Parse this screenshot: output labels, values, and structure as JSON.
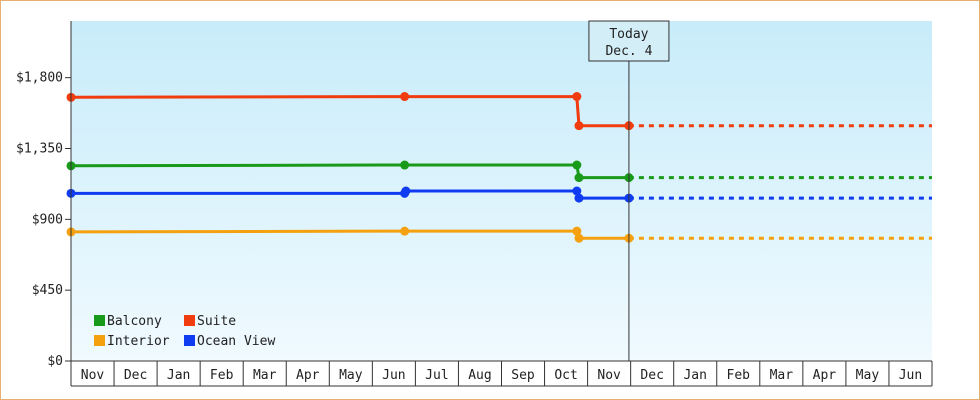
{
  "chart_data": {
    "type": "line",
    "title": "",
    "xlabel": "",
    "ylabel": "",
    "ylim": [
      0,
      2160
    ],
    "y_ticks": [
      {
        "value": 0,
        "label": "$0"
      },
      {
        "value": 450,
        "label": "$450"
      },
      {
        "value": 900,
        "label": "$900"
      },
      {
        "value": 1350,
        "label": "$1,350"
      },
      {
        "value": 1800,
        "label": "$1,800"
      }
    ],
    "x_tick_labels": [
      "Nov",
      "Dec",
      "Jan",
      "Feb",
      "Mar",
      "Apr",
      "May",
      "Jun",
      "Jul",
      "Aug",
      "Sep",
      "Oct",
      "Nov",
      "Dec",
      "Jan",
      "Feb",
      "Mar",
      "Apr",
      "May",
      "Jun"
    ],
    "today": {
      "line1": "Today",
      "line2": "Dec. 4",
      "x": 12.96
    },
    "legend": {
      "placement": "bottom-left",
      "items": [
        {
          "label": "Balcony",
          "color": "#1a9a1a"
        },
        {
          "label": "Suite",
          "color": "#f03c0f"
        },
        {
          "label": "Interior",
          "color": "#f5a10f"
        },
        {
          "label": "Ocean View",
          "color": "#0f3cf0"
        }
      ]
    },
    "series": [
      {
        "name": "Suite",
        "color": "#f03c0f",
        "points": [
          [
            0,
            1675
          ],
          [
            7.75,
            1680
          ],
          [
            11.75,
            1680
          ],
          [
            11.8,
            1495
          ],
          [
            12.96,
            1495
          ]
        ],
        "projection": [
          [
            12.96,
            1495
          ],
          [
            20,
            1495
          ]
        ]
      },
      {
        "name": "Balcony",
        "color": "#1a9a1a",
        "points": [
          [
            0,
            1240
          ],
          [
            7.75,
            1245
          ],
          [
            11.75,
            1245
          ],
          [
            11.8,
            1165
          ],
          [
            12.96,
            1165
          ]
        ],
        "projection": [
          [
            12.96,
            1165
          ],
          [
            20,
            1165
          ]
        ]
      },
      {
        "name": "Ocean View",
        "color": "#0f3cf0",
        "points": [
          [
            0,
            1065
          ],
          [
            7.75,
            1065
          ],
          [
            7.78,
            1080
          ],
          [
            11.75,
            1080
          ],
          [
            11.8,
            1035
          ],
          [
            12.96,
            1035
          ]
        ],
        "projection": [
          [
            12.96,
            1035
          ],
          [
            20,
            1035
          ]
        ]
      },
      {
        "name": "Interior",
        "color": "#f5a10f",
        "points": [
          [
            0,
            820
          ],
          [
            7.75,
            825
          ],
          [
            11.75,
            825
          ],
          [
            11.8,
            780
          ],
          [
            12.96,
            780
          ]
        ],
        "projection": [
          [
            12.96,
            780
          ],
          [
            20,
            780
          ]
        ]
      }
    ]
  },
  "colors": {
    "plot_top": "#c8ecfa",
    "plot_bottom": "#f0faff",
    "frame": "#e8b070"
  }
}
